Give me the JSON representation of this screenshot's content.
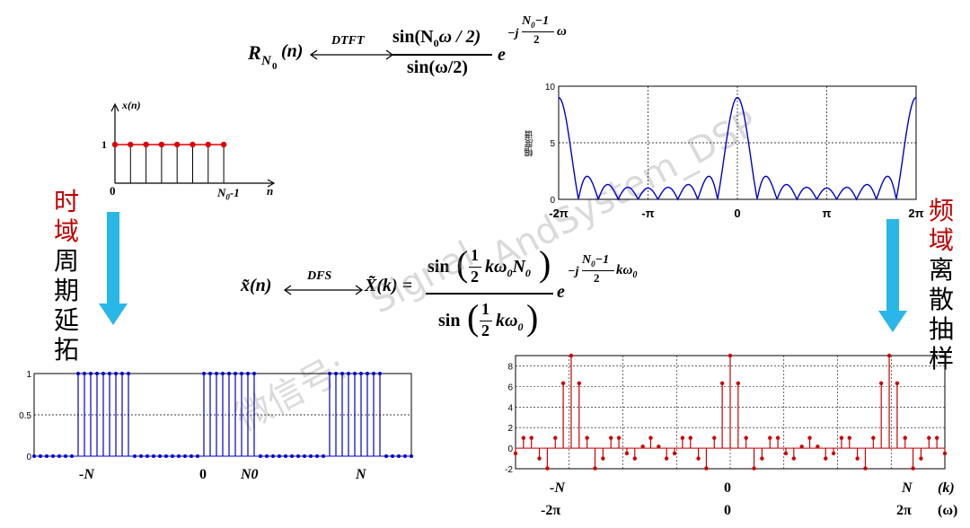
{
  "title_formula": {
    "lhs": "R",
    "lhs_sub": "N",
    "lhs_subsub": "0",
    "lhs_arg": "(n)",
    "arrow_label": "DTFT",
    "num": "sin(N",
    "num_sub": "0",
    "num_rest": "ω / 2)",
    "den": "sin(ω/2)",
    "exp_base": "e",
    "exp": "−j",
    "exp_frac_num": "N",
    "exp_frac_num_sub": "0",
    "exp_frac_num_rest": "−1",
    "exp_frac_den": "2",
    "exp_tail": "ω"
  },
  "dfs_formula": {
    "lhs": "x̃(n)",
    "arrow_label": "DFS",
    "rhs": "X̃(k) =",
    "num_sin": "sin",
    "num_one": "1",
    "num_two": "2",
    "num_rest": "kω",
    "num_sub": "0",
    "num_N": "N",
    "num_N_sub": "0",
    "den_sin": "sin",
    "den_one": "1",
    "den_two": "2",
    "den_rest": "kω",
    "den_sub": "0",
    "exp_base": "e",
    "exp": "−j",
    "exp_frac_num": "N",
    "exp_frac_num_sub": "0",
    "exp_frac_num_rest": "−1",
    "exp_frac_den": "2",
    "exp_tail": "kω",
    "exp_tail_sub": "0"
  },
  "left_label": {
    "red": "时域",
    "black": "周期延拓"
  },
  "right_label": {
    "red": "频域",
    "black": "离散抽样"
  },
  "small_seq": {
    "ylabel": "x(n)",
    "y1": "1",
    "origin": "0",
    "end": "N",
    "end_sub": "0",
    "end_rest": "-1",
    "xlabel": "n",
    "count": 8
  },
  "watermark": {
    "line1": "Signal",
    "line2": "AndSystem_DSP",
    "line3": "微信号:"
  },
  "chart_data": [
    {
      "type": "line",
      "name": "magnitude-spectrum",
      "ylabel": "幅度谱",
      "ylim": [
        0,
        10
      ],
      "yticks": [
        "0",
        "5",
        "10"
      ],
      "xticks": [
        "-2π",
        "-π",
        "0",
        "π",
        "2π"
      ],
      "N0": 9,
      "grid": true,
      "color": "#0000cc"
    },
    {
      "type": "stem",
      "name": "periodic-sequence",
      "ylim": [
        0,
        1
      ],
      "yticks": [
        "0",
        "0.5",
        "1"
      ],
      "xticks": [
        "-N",
        "0",
        "N0",
        "N"
      ],
      "N": 20,
      "N0": 9,
      "color": "#0000cc"
    },
    {
      "type": "stem",
      "name": "sampled-spectrum",
      "ylim": [
        -2,
        9
      ],
      "yticks": [
        "-2",
        "0",
        "2",
        "4",
        "6",
        "8"
      ],
      "xticks_k": [
        "-N",
        "0",
        "N",
        "(k)"
      ],
      "xticks_w": [
        "-2π",
        "0",
        "2π",
        "(ω)"
      ],
      "N": 20,
      "N0": 9,
      "color": "#cc0000"
    }
  ],
  "arrow_color": "#29b6e8"
}
